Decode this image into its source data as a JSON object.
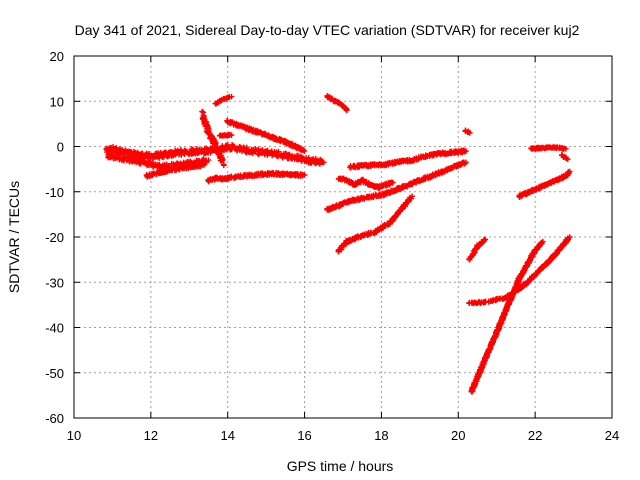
{
  "chart_data": {
    "type": "scatter",
    "title": "Day 341 of 2021, Sidereal Day-to-day VTEC variation (SDTVAR) for receiver kuj2",
    "xlabel": "GPS time / hours",
    "ylabel": "SDTVAR / TECUs",
    "xlim": [
      10,
      24
    ],
    "ylim": [
      -60,
      20
    ],
    "xticks": [
      10,
      12,
      14,
      16,
      18,
      20,
      22,
      24
    ],
    "yticks": [
      20,
      10,
      0,
      -10,
      -20,
      -30,
      -40,
      -50,
      -60
    ],
    "grid": true,
    "marker": "plus",
    "color": "#ff0000",
    "series": [
      {
        "segments": [
          {
            "x": [
              10.85,
              11.0,
              11.2,
              11.4,
              11.6,
              11.8,
              12.0,
              12.2,
              12.4,
              12.6,
              12.8,
              13.0,
              13.2,
              13.4,
              13.6,
              13.8,
              14.0,
              14.3,
              14.6,
              14.9,
              15.2,
              15.5,
              15.8,
              16.1,
              16.3,
              16.5
            ],
            "y": [
              -1.0,
              -0.5,
              -1.0,
              -1.5,
              -1.8,
              -2.0,
              -2.2,
              -2.0,
              -1.8,
              -1.5,
              -1.3,
              -1.2,
              -1.0,
              -1.0,
              -0.8,
              -0.5,
              0.0,
              -0.5,
              -1.0,
              -1.3,
              -1.5,
              -2.0,
              -2.5,
              -3.0,
              -3.2,
              -3.5
            ],
            "n": 4,
            "jitter": 1.2
          },
          {
            "x": [
              10.9,
              11.2,
              11.5,
              11.8,
              12.0,
              12.3,
              12.6,
              12.9,
              13.2,
              13.5
            ],
            "y": [
              -2.0,
              -2.5,
              -3.0,
              -3.5,
              -4.0,
              -4.5,
              -4.2,
              -3.8,
              -3.5,
              -3.0
            ],
            "n": 4,
            "jitter": 1.0
          },
          {
            "x": [
              11.9,
              12.2,
              12.5,
              12.8,
              13.1,
              13.4
            ],
            "y": [
              -6.5,
              -5.8,
              -5.2,
              -4.8,
              -4.4,
              -4.0
            ],
            "n": 4,
            "jitter": 0.5
          },
          {
            "x": [
              13.5,
              13.7,
              13.9,
              14.1,
              14.4,
              14.8,
              15.2,
              15.6,
              16.0
            ],
            "y": [
              -7.5,
              -7.0,
              -7.2,
              -6.8,
              -6.5,
              -6.2,
              -6.0,
              -6.2,
              -6.3
            ],
            "n": 4,
            "jitter": 0.5
          },
          {
            "x": [
              13.35,
              13.5,
              13.7,
              13.9
            ],
            "y": [
              7.0,
              3.0,
              0.0,
              -4.0
            ],
            "n": 4,
            "jitter": 1.5
          },
          {
            "x": [
              13.7,
              13.9,
              14.1
            ],
            "y": [
              9.5,
              10.5,
              11.0
            ],
            "n": 3,
            "jitter": 0.3
          },
          {
            "x": [
              13.8,
              14.1
            ],
            "y": [
              2.5,
              2.5
            ],
            "n": 4,
            "jitter": 0.3
          },
          {
            "x": [
              14.0,
              14.5,
              15.0,
              15.5,
              16.0
            ],
            "y": [
              5.5,
              4.0,
              2.5,
              1.0,
              -1.0
            ],
            "n": 5,
            "jitter": 0.5
          },
          {
            "x": [
              16.6,
              16.8,
              17.0,
              17.1
            ],
            "y": [
              11.0,
              10.0,
              9.0,
              8.0
            ],
            "n": 4,
            "jitter": 0.4
          },
          {
            "x": [
              16.9,
              17.1,
              17.3,
              17.5,
              17.7,
              17.9,
              18.1,
              18.3
            ],
            "y": [
              -7.0,
              -7.5,
              -8.5,
              -7.5,
              -8.5,
              -9.0,
              -8.5,
              -8.0
            ],
            "n": 4,
            "jitter": 0.5
          },
          {
            "x": [
              17.2,
              17.6,
              18.0,
              18.4,
              18.8,
              19.2,
              19.6,
              20.0,
              20.2
            ],
            "y": [
              -4.5,
              -4.2,
              -4.0,
              -3.5,
              -3.0,
              -2.0,
              -1.5,
              -1.2,
              -1.0
            ],
            "n": 4,
            "jitter": 0.5
          },
          {
            "x": [
              16.6,
              16.9,
              17.2,
              17.5,
              17.8,
              18.1,
              18.4,
              18.7,
              19.0,
              19.3,
              19.6,
              19.9,
              20.2
            ],
            "y": [
              -14.0,
              -13.0,
              -12.0,
              -11.5,
              -11.0,
              -10.5,
              -9.5,
              -8.5,
              -7.5,
              -6.5,
              -5.5,
              -4.5,
              -3.5
            ],
            "n": 4,
            "jitter": 0.5
          },
          {
            "x": [
              16.9,
              17.1,
              17.4,
              17.8,
              18.2,
              18.6,
              18.8
            ],
            "y": [
              -23.0,
              -21.0,
              -20.0,
              -19.0,
              -17.0,
              -13.0,
              -11.0
            ],
            "n": 4,
            "jitter": 0.5
          },
          {
            "x": [
              20.2,
              20.3
            ],
            "y": [
              3.5,
              3.0
            ],
            "n": 3,
            "jitter": 0.3
          },
          {
            "x": [
              20.3,
              20.5,
              20.7
            ],
            "y": [
              -25.0,
              -22.0,
              -20.5
            ],
            "n": 3,
            "jitter": 0.4
          },
          {
            "x": [
              20.3,
              20.6,
              20.9,
              21.2,
              21.4
            ],
            "y": [
              -34.5,
              -34.5,
              -34.0,
              -33.5,
              -32.5
            ],
            "n": 3,
            "jitter": 0.4
          },
          {
            "x": [
              20.35,
              20.8,
              21.2,
              21.6,
              22.0,
              22.2
            ],
            "y": [
              -54.0,
              -45.0,
              -37.0,
              -29.0,
              -23.0,
              -21.0
            ],
            "n": 6,
            "jitter": 0.4
          },
          {
            "x": [
              21.5,
              21.8,
              22.1,
              22.4,
              22.7,
              22.9
            ],
            "y": [
              -32.0,
              -30.0,
              -27.5,
              -25.0,
              -22.0,
              -20.0
            ],
            "n": 5,
            "jitter": 0.4
          },
          {
            "x": [
              21.6,
              22.0,
              22.4,
              22.8,
              22.9
            ],
            "y": [
              -11.0,
              -9.5,
              -8.0,
              -6.5,
              -5.5
            ],
            "n": 5,
            "jitter": 0.4
          },
          {
            "x": [
              21.9,
              22.2,
              22.5,
              22.8
            ],
            "y": [
              -0.5,
              -0.3,
              -0.2,
              -0.5
            ],
            "n": 4,
            "jitter": 0.3
          },
          {
            "x": [
              22.7,
              22.85
            ],
            "y": [
              -2.0,
              -2.8
            ],
            "n": 3,
            "jitter": 0.3
          }
        ]
      }
    ]
  }
}
